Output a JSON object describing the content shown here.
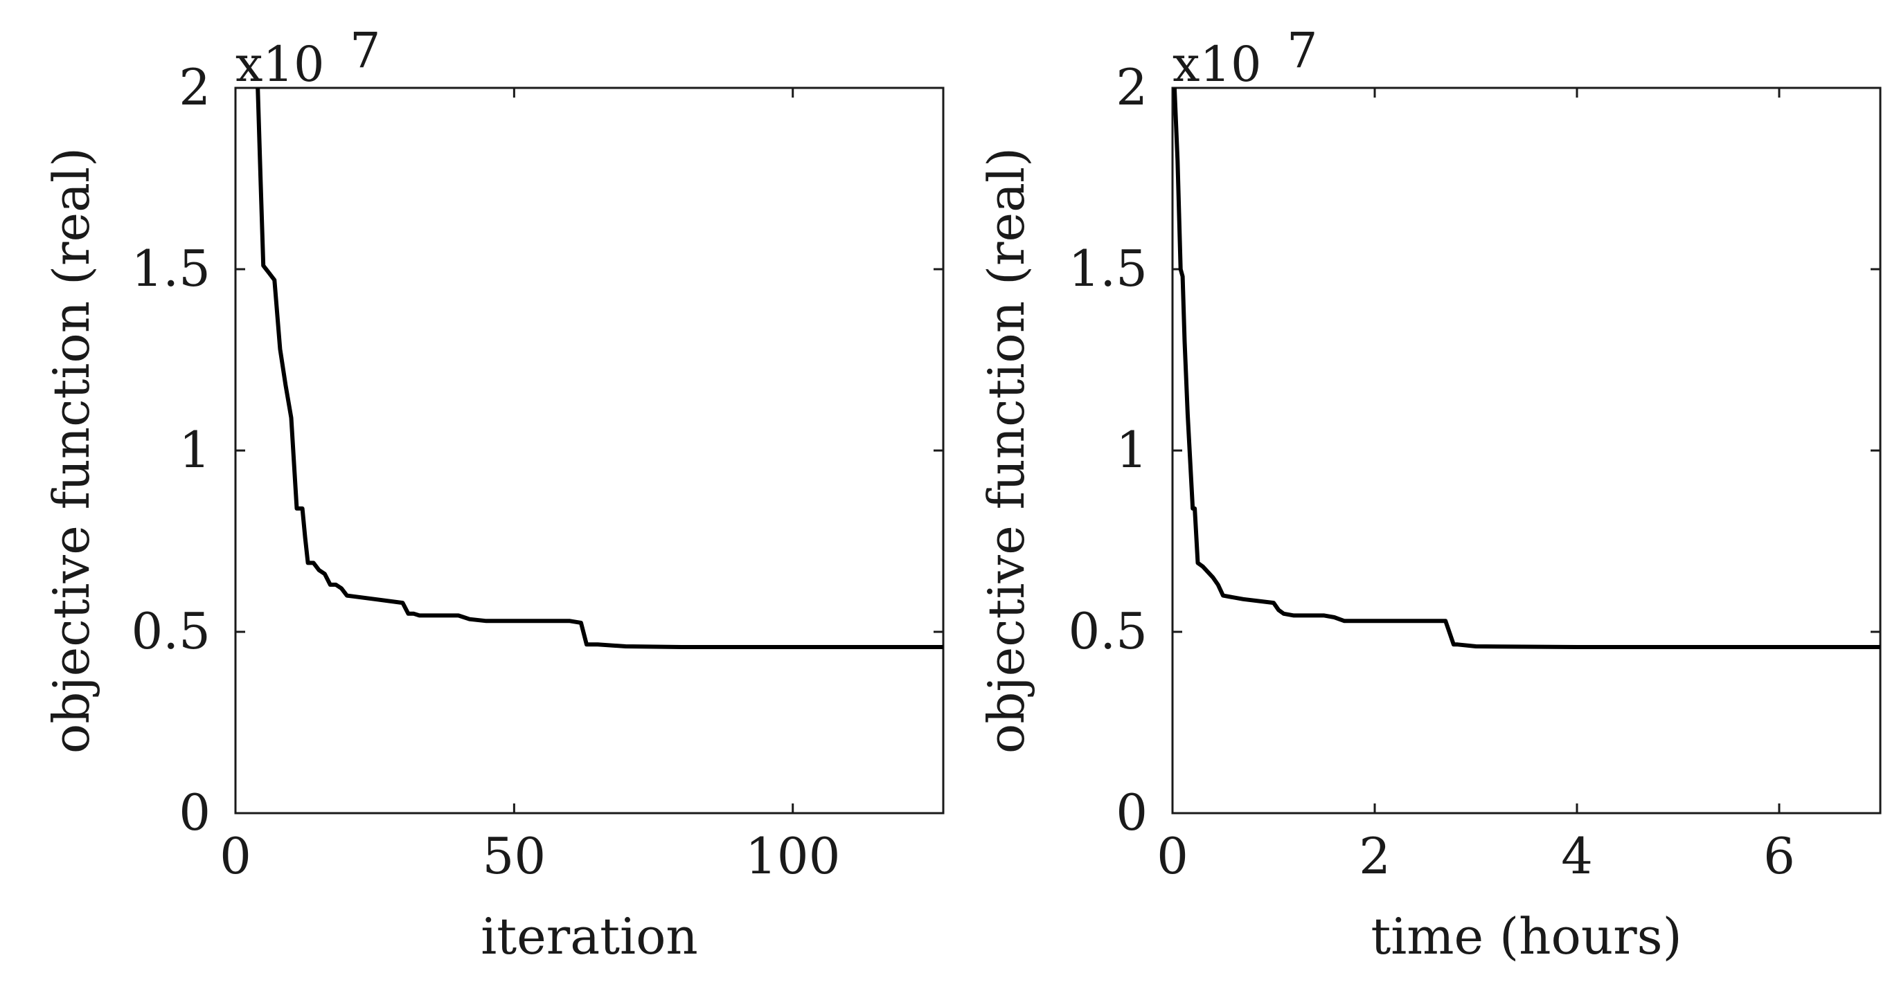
{
  "chart_data": [
    {
      "type": "line",
      "xlabel": "iteration",
      "ylabel": "objective function (real)",
      "y_multiplier_label": "x10",
      "y_multiplier_exponent": "7",
      "xlim": [
        0,
        127
      ],
      "ylim": [
        0,
        2
      ],
      "xticks": [
        0,
        50,
        100
      ],
      "xtick_labels": [
        "0",
        "50",
        "100"
      ],
      "yticks": [
        0,
        0.5,
        1,
        1.5,
        2
      ],
      "ytick_labels": [
        "0",
        "0.5",
        "1",
        "1.5",
        "2"
      ],
      "grid": false,
      "series": [
        {
          "color": "#000000",
          "x": [
            4,
            4.5,
            5,
            6,
            7,
            8,
            9,
            10,
            11,
            12,
            12.5,
            13,
            14,
            15,
            16,
            17,
            18,
            19,
            20,
            25,
            30,
            31,
            32,
            33,
            40,
            41,
            42,
            45,
            60,
            62,
            63,
            65,
            70,
            80,
            100,
            127
          ],
          "y": [
            2.0,
            1.75,
            1.51,
            1.49,
            1.47,
            1.28,
            1.18,
            1.09,
            0.84,
            0.84,
            0.76,
            0.69,
            0.69,
            0.67,
            0.66,
            0.63,
            0.63,
            0.62,
            0.6,
            0.59,
            0.58,
            0.55,
            0.55,
            0.545,
            0.545,
            0.54,
            0.535,
            0.53,
            0.53,
            0.525,
            0.465,
            0.465,
            0.46,
            0.458,
            0.458,
            0.458
          ]
        }
      ]
    },
    {
      "type": "line",
      "xlabel": "time (hours)",
      "ylabel": "objective function (real)",
      "y_multiplier_label": "x10",
      "y_multiplier_exponent": "7",
      "xlim": [
        0,
        7
      ],
      "ylim": [
        0,
        2
      ],
      "xticks": [
        0,
        2,
        4,
        6
      ],
      "xtick_labels": [
        "0",
        "2",
        "4",
        "6"
      ],
      "yticks": [
        0,
        0.5,
        1,
        1.5,
        2
      ],
      "ytick_labels": [
        "0",
        "0.5",
        "1",
        "1.5",
        "2"
      ],
      "grid": false,
      "series": [
        {
          "color": "#000000",
          "x": [
            0.02,
            0.05,
            0.08,
            0.1,
            0.12,
            0.15,
            0.2,
            0.22,
            0.25,
            0.3,
            0.4,
            0.45,
            0.5,
            0.7,
            1.0,
            1.05,
            1.1,
            1.2,
            1.5,
            1.6,
            1.65,
            1.7,
            2.0,
            2.7,
            2.78,
            2.82,
            3.0,
            4.0,
            5.0,
            7.0
          ],
          "y": [
            2.0,
            1.8,
            1.5,
            1.48,
            1.3,
            1.1,
            0.84,
            0.84,
            0.69,
            0.68,
            0.65,
            0.63,
            0.6,
            0.59,
            0.58,
            0.56,
            0.55,
            0.545,
            0.545,
            0.54,
            0.535,
            0.53,
            0.53,
            0.53,
            0.465,
            0.465,
            0.46,
            0.458,
            0.458,
            0.458
          ]
        }
      ]
    }
  ]
}
